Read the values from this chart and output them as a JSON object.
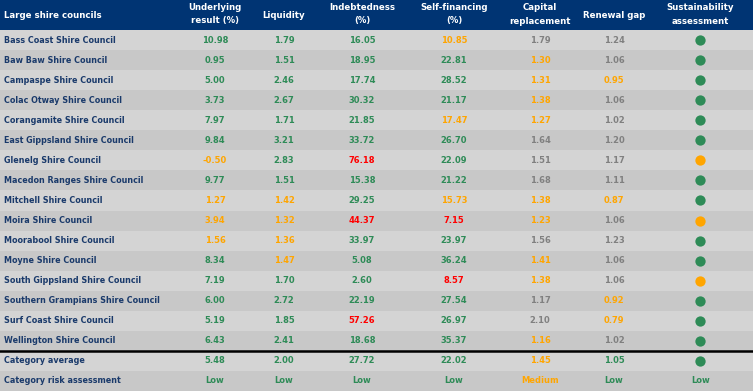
{
  "header_bg": "#003473",
  "row_bg_even": "#d4d4d4",
  "row_bg_odd": "#c8c8c8",
  "rows": [
    [
      "Bass Coast Shire Council",
      "10.98",
      "1.79",
      "16.05",
      "10.85",
      "1.79",
      "1.24",
      "green"
    ],
    [
      "Baw Baw Shire Council",
      "0.95",
      "1.51",
      "18.95",
      "22.81",
      "1.30",
      "1.06",
      "green"
    ],
    [
      "Campaspe Shire Council",
      "5.00",
      "2.46",
      "17.74",
      "28.52",
      "1.31",
      "0.95",
      "green"
    ],
    [
      "Colac Otway Shire Council",
      "3.73",
      "2.67",
      "30.32",
      "21.17",
      "1.38",
      "1.06",
      "green"
    ],
    [
      "Corangamite Shire Council",
      "7.97",
      "1.71",
      "21.85",
      "17.47",
      "1.27",
      "1.02",
      "green"
    ],
    [
      "East Gippsland Shire Council",
      "9.84",
      "3.21",
      "33.72",
      "26.70",
      "1.64",
      "1.20",
      "green"
    ],
    [
      "Glenelg Shire Council",
      "-0.50",
      "2.83",
      "76.18",
      "22.09",
      "1.51",
      "1.17",
      "orange"
    ],
    [
      "Macedon Ranges Shire Council",
      "9.77",
      "1.51",
      "15.38",
      "21.22",
      "1.68",
      "1.11",
      "green"
    ],
    [
      "Mitchell Shire Council",
      "1.27",
      "1.42",
      "29.25",
      "15.73",
      "1.38",
      "0.87",
      "green"
    ],
    [
      "Moira Shire Council",
      "3.94",
      "1.32",
      "44.37",
      "7.15",
      "1.23",
      "1.06",
      "orange"
    ],
    [
      "Moorabool Shire Council",
      "1.56",
      "1.36",
      "33.97",
      "23.97",
      "1.56",
      "1.23",
      "green"
    ],
    [
      "Moyne Shire Council",
      "8.34",
      "1.47",
      "5.08",
      "36.24",
      "1.41",
      "1.06",
      "green"
    ],
    [
      "South Gippsland Shire Council",
      "7.19",
      "1.70",
      "2.60",
      "8.57",
      "1.38",
      "1.06",
      "orange"
    ],
    [
      "Southern Grampians Shire Council",
      "6.00",
      "2.72",
      "22.19",
      "27.54",
      "1.17",
      "0.92",
      "green"
    ],
    [
      "Surf Coast Shire Council",
      "5.19",
      "1.85",
      "57.26",
      "26.97",
      "2.10",
      "0.79",
      "green"
    ],
    [
      "Wellington Shire Council",
      "6.43",
      "2.41",
      "18.68",
      "35.37",
      "1.16",
      "1.02",
      "green"
    ]
  ],
  "category_average": [
    "5.48",
    "2.00",
    "27.72",
    "22.02",
    "1.45",
    "1.05",
    "green"
  ],
  "category_risk": [
    "Low",
    "Low",
    "Low",
    "Low",
    "Medium",
    "Low",
    "Low"
  ],
  "underlying_colors": [
    "green",
    "green",
    "green",
    "green",
    "green",
    "green",
    "orange",
    "green",
    "orange",
    "orange",
    "orange",
    "green",
    "green",
    "green",
    "green",
    "green"
  ],
  "liquidity_colors": [
    "green",
    "green",
    "green",
    "green",
    "green",
    "green",
    "green",
    "green",
    "orange",
    "orange",
    "orange",
    "orange",
    "green",
    "green",
    "green",
    "green"
  ],
  "indebtedness_colors": [
    "green",
    "green",
    "green",
    "green",
    "green",
    "green",
    "red",
    "green",
    "green",
    "red",
    "green",
    "green",
    "green",
    "green",
    "red",
    "green"
  ],
  "selffinancing_colors": [
    "orange",
    "green",
    "green",
    "green",
    "orange",
    "green",
    "green",
    "green",
    "orange",
    "red",
    "green",
    "green",
    "red",
    "green",
    "green",
    "green"
  ],
  "capital_colors": [
    "gray",
    "orange",
    "orange",
    "orange",
    "orange",
    "gray",
    "gray",
    "gray",
    "orange",
    "orange",
    "gray",
    "orange",
    "orange",
    "gray",
    "gray",
    "orange"
  ],
  "renewal_colors": [
    "gray",
    "gray",
    "orange",
    "gray",
    "gray",
    "gray",
    "gray",
    "gray",
    "orange",
    "gray",
    "gray",
    "gray",
    "gray",
    "orange",
    "orange",
    "gray"
  ],
  "avg_col_colors": [
    "green",
    "green",
    "green",
    "green",
    "orange",
    "green"
  ],
  "risk_col_colors": [
    "green",
    "green",
    "green",
    "green",
    "orange",
    "green",
    "green"
  ],
  "col_header_line1": [
    "Large shire councils",
    "Underlying",
    "Liquidity",
    "Indebtedness",
    "Self-financing",
    "Capital",
    "Renewal gap",
    "Sustainability"
  ],
  "col_header_line2": [
    "",
    "result (%)",
    "",
    "(%)",
    "(%)",
    "replacement",
    "",
    "assessment"
  ],
  "figsize": [
    7.53,
    3.91
  ],
  "dpi": 100
}
